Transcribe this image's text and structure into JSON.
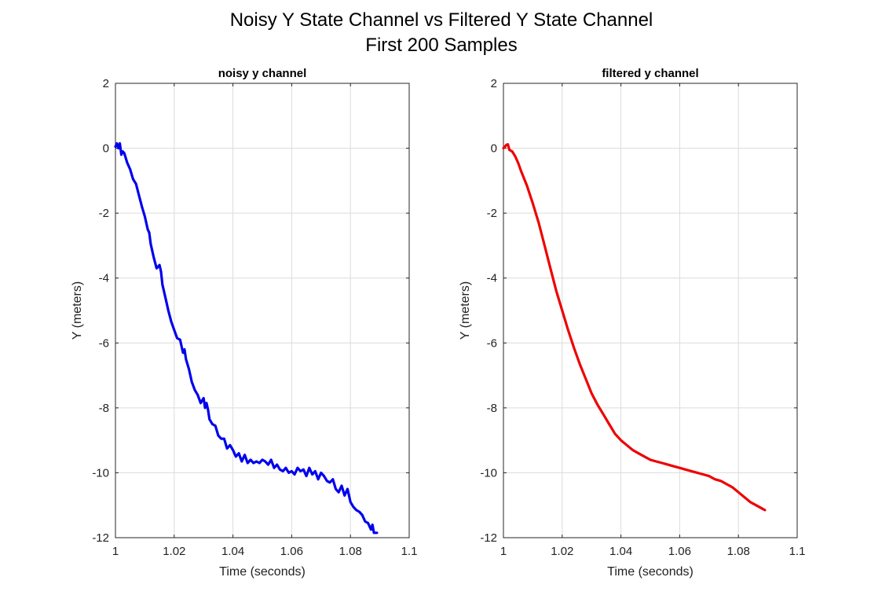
{
  "figure": {
    "title_line1": "Noisy Y State Channel vs Filtered Y State Channel",
    "title_line2": "First 200 Samples"
  },
  "chart_data": [
    {
      "type": "line",
      "title": "noisy y channel",
      "xlabel": "Time (seconds)",
      "ylabel": "Y (meters)",
      "xlim": [
        1,
        1.1
      ],
      "ylim": [
        -12,
        2
      ],
      "xticks": [
        "1",
        "1.02",
        "1.04",
        "1.06",
        "1.08",
        "1.1"
      ],
      "yticks": [
        "2",
        "0",
        "-2",
        "-4",
        "-6",
        "-8",
        "-10",
        "-12"
      ],
      "grid": true,
      "series": [
        {
          "color": "#0000ee",
          "x": [
            1.0,
            1.0005,
            1.001,
            1.0015,
            1.002,
            1.0025,
            1.003,
            1.004,
            1.005,
            1.006,
            1.007,
            1.008,
            1.009,
            1.01,
            1.011,
            1.0115,
            1.012,
            1.013,
            1.014,
            1.015,
            1.0155,
            1.016,
            1.017,
            1.018,
            1.019,
            1.02,
            1.021,
            1.022,
            1.023,
            1.0235,
            1.024,
            1.025,
            1.026,
            1.027,
            1.028,
            1.029,
            1.03,
            1.0305,
            1.031,
            1.0315,
            1.032,
            1.033,
            1.034,
            1.035,
            1.036,
            1.037,
            1.038,
            1.039,
            1.04,
            1.041,
            1.042,
            1.043,
            1.044,
            1.045,
            1.046,
            1.047,
            1.048,
            1.049,
            1.05,
            1.051,
            1.052,
            1.053,
            1.054,
            1.055,
            1.056,
            1.057,
            1.058,
            1.059,
            1.06,
            1.061,
            1.062,
            1.063,
            1.064,
            1.065,
            1.066,
            1.067,
            1.068,
            1.069,
            1.07,
            1.071,
            1.072,
            1.073,
            1.074,
            1.075,
            1.076,
            1.077,
            1.078,
            1.079,
            1.08,
            1.081,
            1.082,
            1.083,
            1.084,
            1.085,
            1.086,
            1.087,
            1.0875,
            1.088,
            1.089
          ],
          "y": [
            0.05,
            0.15,
            0.0,
            0.15,
            -0.2,
            -0.1,
            -0.15,
            -0.45,
            -0.65,
            -0.95,
            -1.1,
            -1.45,
            -1.8,
            -2.1,
            -2.5,
            -2.6,
            -2.95,
            -3.35,
            -3.7,
            -3.6,
            -3.8,
            -4.2,
            -4.6,
            -5.0,
            -5.35,
            -5.6,
            -5.85,
            -5.9,
            -6.3,
            -6.2,
            -6.5,
            -6.8,
            -7.2,
            -7.45,
            -7.6,
            -7.85,
            -7.7,
            -8.0,
            -7.85,
            -8.05,
            -8.35,
            -8.5,
            -8.55,
            -8.85,
            -8.95,
            -8.95,
            -9.25,
            -9.15,
            -9.3,
            -9.5,
            -9.4,
            -9.65,
            -9.45,
            -9.7,
            -9.6,
            -9.7,
            -9.65,
            -9.7,
            -9.6,
            -9.65,
            -9.75,
            -9.6,
            -9.85,
            -9.75,
            -9.9,
            -9.95,
            -9.85,
            -10.0,
            -9.95,
            -10.05,
            -9.85,
            -9.95,
            -9.9,
            -10.1,
            -9.85,
            -10.05,
            -9.95,
            -10.2,
            -10.0,
            -10.1,
            -10.25,
            -10.3,
            -10.2,
            -10.5,
            -10.6,
            -10.4,
            -10.7,
            -10.5,
            -10.9,
            -11.05,
            -11.15,
            -11.2,
            -11.3,
            -11.5,
            -11.55,
            -11.75,
            -11.6,
            -11.85,
            -11.85
          ]
        }
      ]
    },
    {
      "type": "line",
      "title": "filtered y channel",
      "xlabel": "Time (seconds)",
      "ylabel": "Y (meters)",
      "xlim": [
        1,
        1.1
      ],
      "ylim": [
        -12,
        2
      ],
      "xticks": [
        "1",
        "1.02",
        "1.04",
        "1.06",
        "1.08",
        "1.1"
      ],
      "yticks": [
        "2",
        "0",
        "-2",
        "-4",
        "-6",
        "-8",
        "-10",
        "-12"
      ],
      "grid": true,
      "series": [
        {
          "color": "#ee0000",
          "x": [
            1.0,
            1.0005,
            1.001,
            1.0015,
            1.002,
            1.003,
            1.004,
            1.005,
            1.006,
            1.008,
            1.01,
            1.012,
            1.014,
            1.016,
            1.018,
            1.02,
            1.022,
            1.024,
            1.026,
            1.028,
            1.03,
            1.032,
            1.034,
            1.036,
            1.038,
            1.04,
            1.042,
            1.044,
            1.046,
            1.048,
            1.05,
            1.052,
            1.054,
            1.056,
            1.058,
            1.06,
            1.062,
            1.064,
            1.066,
            1.068,
            1.07,
            1.072,
            1.074,
            1.076,
            1.078,
            1.08,
            1.082,
            1.084,
            1.086,
            1.088,
            1.089
          ],
          "y": [
            0.0,
            0.05,
            0.1,
            0.12,
            -0.05,
            -0.1,
            -0.25,
            -0.45,
            -0.7,
            -1.15,
            -1.7,
            -2.3,
            -3.0,
            -3.7,
            -4.4,
            -5.0,
            -5.6,
            -6.15,
            -6.65,
            -7.1,
            -7.55,
            -7.9,
            -8.2,
            -8.5,
            -8.8,
            -9.0,
            -9.15,
            -9.3,
            -9.4,
            -9.5,
            -9.6,
            -9.65,
            -9.7,
            -9.75,
            -9.8,
            -9.85,
            -9.9,
            -9.95,
            -10.0,
            -10.05,
            -10.1,
            -10.2,
            -10.25,
            -10.35,
            -10.45,
            -10.6,
            -10.75,
            -10.9,
            -11.0,
            -11.1,
            -11.15
          ]
        }
      ]
    }
  ]
}
